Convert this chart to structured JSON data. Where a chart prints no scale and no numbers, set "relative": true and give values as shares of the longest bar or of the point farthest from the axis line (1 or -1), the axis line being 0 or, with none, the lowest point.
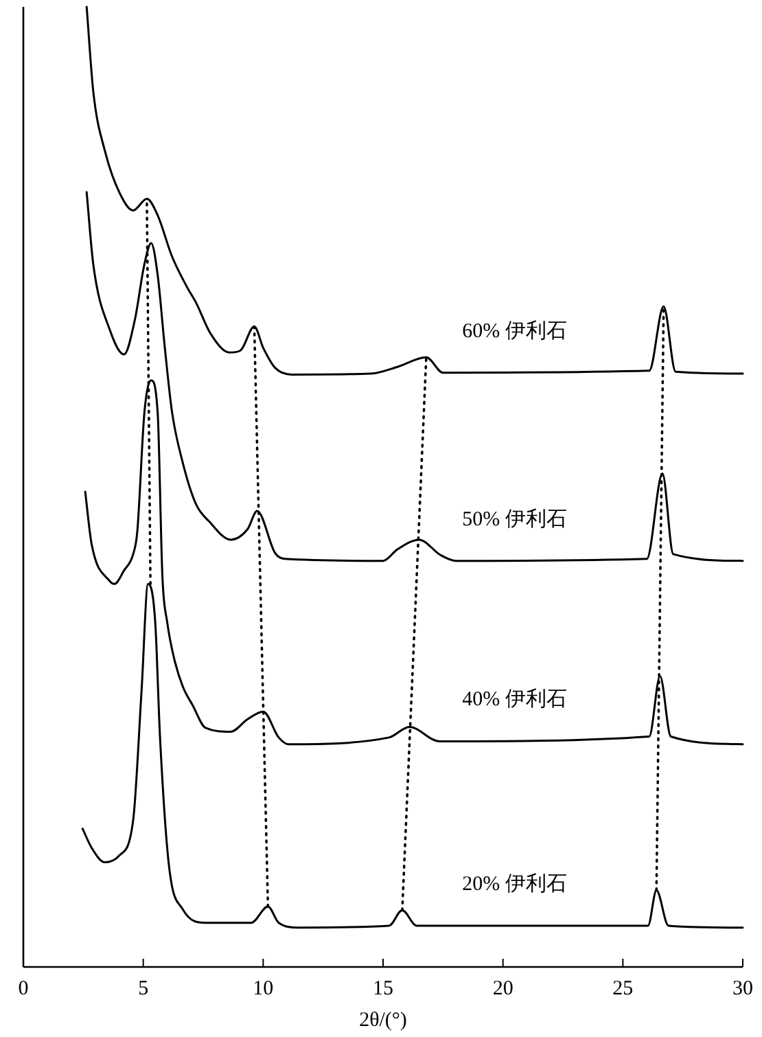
{
  "chart_data": {
    "type": "line",
    "relative": true,
    "xlabel": "2θ/(°)",
    "xlim": [
      0,
      30
    ],
    "xticks": [
      0,
      5,
      10,
      15,
      20,
      25,
      30
    ],
    "grid": false,
    "marker": "none",
    "line_style": "solid",
    "series": [
      {
        "name": "60% 伊利石",
        "color": "#000000",
        "x": [
          2.64,
          2.92,
          3.4,
          4.0,
          4.58,
          5.15,
          5.6,
          6.2,
          6.85,
          7.2,
          7.8,
          8.6,
          9.05,
          9.63,
          10.0,
          10.5,
          11.2,
          14.5,
          15.6,
          16.8,
          17.5,
          26.1,
          26.7,
          27.2,
          30.0
        ],
        "values": [
          1,
          0.911,
          0.85,
          0.807,
          0.788,
          0.8,
          0.783,
          0.74,
          0.707,
          0.692,
          0.66,
          0.64,
          0.642,
          0.667,
          0.645,
          0.624,
          0.617,
          0.618,
          0.625,
          0.635,
          0.619,
          0.621,
          0.688,
          0.62,
          0.618
        ]
      },
      {
        "name": "50% 伊利石",
        "color": "#000000",
        "x": [
          2.64,
          2.92,
          3.6,
          4.2,
          4.65,
          5.04,
          5.33,
          5.6,
          5.9,
          6.2,
          6.65,
          7.2,
          7.75,
          8.65,
          9.35,
          9.75,
          10.5,
          10.9,
          15.0,
          15.6,
          16.5,
          17.4,
          18.05,
          26.0,
          26.65,
          27.1,
          30.0
        ],
        "values": [
          0.807,
          0.731,
          0.664,
          0.638,
          0.674,
          0.731,
          0.754,
          0.721,
          0.645,
          0.578,
          0.525,
          0.482,
          0.464,
          0.445,
          0.456,
          0.475,
          0.431,
          0.425,
          0.423,
          0.435,
          0.445,
          0.429,
          0.423,
          0.425,
          0.514,
          0.43,
          0.423
        ]
      },
      {
        "name": "40% 伊利石",
        "color": "#000000",
        "x": [
          2.58,
          2.85,
          3.6,
          3.8,
          4.2,
          4.58,
          4.75,
          5.05,
          5.33,
          5.6,
          5.8,
          6.0,
          6.3,
          6.65,
          7.05,
          7.6,
          8.65,
          9.35,
          10.0,
          10.65,
          11.05,
          15.25,
          16.1,
          17.35,
          26.1,
          26.55,
          27.0,
          30.0
        ],
        "values": [
          0.495,
          0.44,
          0.402,
          0.399,
          0.413,
          0.43,
          0.453,
          0.578,
          0.611,
          0.578,
          0.406,
          0.359,
          0.32,
          0.292,
          0.273,
          0.249,
          0.245,
          0.258,
          0.266,
          0.239,
          0.232,
          0.239,
          0.25,
          0.235,
          0.24,
          0.303,
          0.24,
          0.232
        ]
      },
      {
        "name": "20% 伊利石",
        "color": "#000000",
        "x": [
          2.47,
          2.85,
          3.4,
          4.0,
          4.58,
          4.93,
          5.2,
          5.5,
          5.7,
          6.07,
          6.65,
          7.6,
          9.5,
          10.2,
          10.65,
          11.5,
          15.25,
          15.8,
          16.4,
          26.05,
          26.4,
          26.9,
          30.0
        ],
        "values": [
          0.144,
          0.124,
          0.109,
          0.116,
          0.153,
          0.288,
          0.399,
          0.359,
          0.239,
          0.106,
          0.06,
          0.046,
          0.046,
          0.063,
          0.046,
          0.041,
          0.043,
          0.059,
          0.043,
          0.043,
          0.08,
          0.043,
          0.041
        ]
      },
      {
        "color": "#000000",
        "line_style": "dotted",
        "x": [
          5.3,
          5.15
        ],
        "values": [
          0.399,
          0.8
        ]
      },
      {
        "color": "#000000",
        "line_style": "dotted",
        "x": [
          10.2,
          9.63
        ],
        "values": [
          0.063,
          0.667
        ]
      },
      {
        "color": "#000000",
        "line_style": "dotted",
        "x": [
          15.8,
          16.8
        ],
        "values": [
          0.059,
          0.635
        ]
      },
      {
        "color": "#000000",
        "line_style": "dotted",
        "x": [
          26.4,
          26.7
        ],
        "values": [
          0.08,
          0.688
        ]
      }
    ]
  }
}
